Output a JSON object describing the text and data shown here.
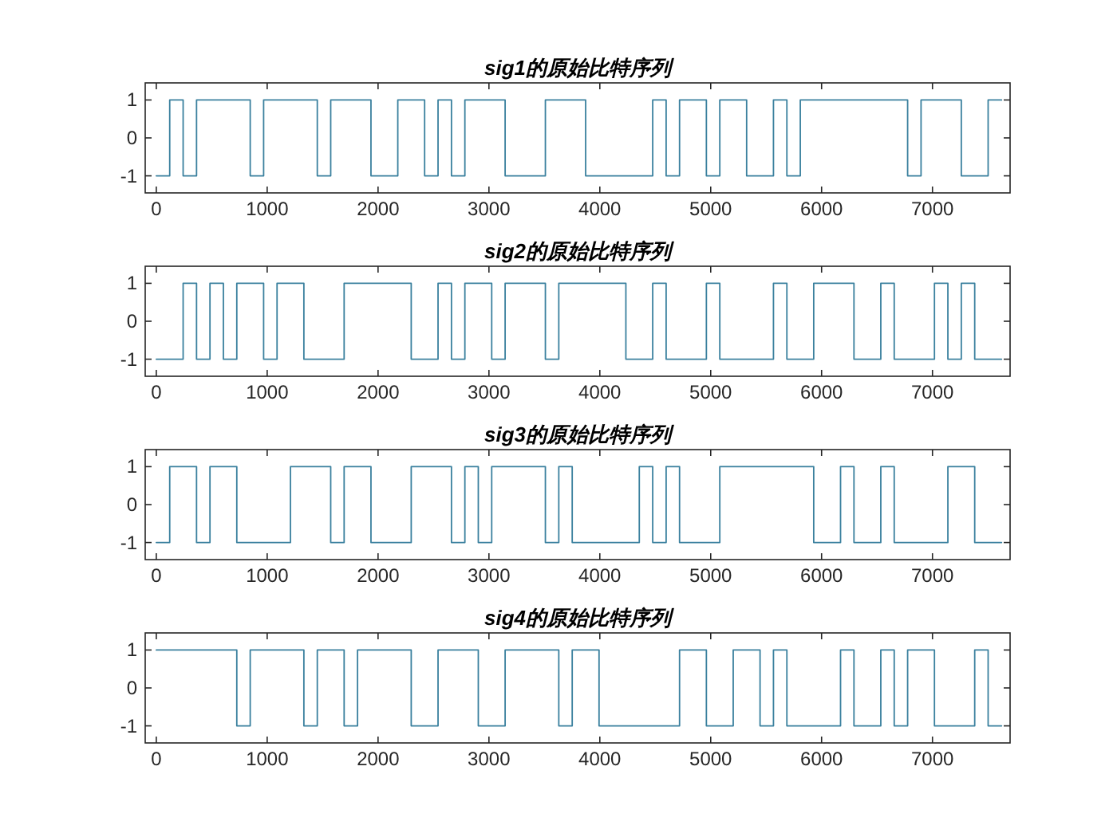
{
  "chart_data": [
    {
      "type": "step",
      "title": "sig1的原始比特序列",
      "color": "#3a809e",
      "xlim": [
        -100,
        7700
      ],
      "xticks": [
        0,
        1000,
        2000,
        3000,
        4000,
        5000,
        6000,
        7000
      ],
      "ylim": [
        -1.45,
        1.45
      ],
      "yticks": [
        -1,
        0,
        1
      ],
      "x": [
        0,
        121,
        242,
        363,
        484,
        605,
        726,
        847,
        968,
        1089,
        1210,
        1331,
        1452,
        1573,
        1694,
        1815,
        1936,
        2057,
        2178,
        2299,
        2420,
        2541,
        2662,
        2783,
        2904,
        3025,
        3146,
        3267,
        3388,
        3509,
        3630,
        3751,
        3872,
        3993,
        4114,
        4235,
        4356,
        4477,
        4598,
        4719,
        4840,
        4961,
        5082,
        5203,
        5324,
        5445,
        5566,
        5687,
        5808,
        5929,
        6050,
        6171,
        6292,
        6413,
        6534,
        6655,
        6776,
        6897,
        7018,
        7139,
        7260,
        7381,
        7502,
        7623
      ],
      "values": [
        -1,
        1,
        -1,
        1,
        1,
        1,
        1,
        -1,
        1,
        1,
        1,
        1,
        -1,
        1,
        1,
        1,
        -1,
        -1,
        1,
        1,
        -1,
        1,
        -1,
        1,
        1,
        1,
        -1,
        -1,
        -1,
        1,
        1,
        1,
        -1,
        -1,
        -1,
        -1,
        -1,
        1,
        -1,
        1,
        1,
        -1,
        1,
        1,
        -1,
        -1,
        1,
        -1,
        1,
        1,
        1,
        1,
        1,
        1,
        1,
        1,
        -1,
        1,
        1,
        1,
        -1,
        -1,
        1,
        1
      ]
    },
    {
      "type": "step",
      "title": "sig2的原始比特序列",
      "color": "#3a809e",
      "xlim": [
        -100,
        7700
      ],
      "xticks": [
        0,
        1000,
        2000,
        3000,
        4000,
        5000,
        6000,
        7000
      ],
      "ylim": [
        -1.45,
        1.45
      ],
      "yticks": [
        -1,
        0,
        1
      ],
      "x": [
        0,
        121,
        242,
        363,
        484,
        605,
        726,
        847,
        968,
        1089,
        1210,
        1331,
        1452,
        1573,
        1694,
        1815,
        1936,
        2057,
        2178,
        2299,
        2420,
        2541,
        2662,
        2783,
        2904,
        3025,
        3146,
        3267,
        3388,
        3509,
        3630,
        3751,
        3872,
        3993,
        4114,
        4235,
        4356,
        4477,
        4598,
        4719,
        4840,
        4961,
        5082,
        5203,
        5324,
        5445,
        5566,
        5687,
        5808,
        5929,
        6050,
        6171,
        6292,
        6413,
        6534,
        6655,
        6776,
        6897,
        7018,
        7139,
        7260,
        7381,
        7502,
        7623
      ],
      "values": [
        -1,
        -1,
        1,
        -1,
        1,
        -1,
        1,
        1,
        -1,
        1,
        1,
        -1,
        -1,
        -1,
        1,
        1,
        1,
        1,
        1,
        -1,
        -1,
        1,
        -1,
        1,
        1,
        -1,
        1,
        1,
        1,
        -1,
        1,
        1,
        1,
        1,
        1,
        -1,
        -1,
        1,
        -1,
        -1,
        -1,
        1,
        -1,
        -1,
        -1,
        -1,
        1,
        -1,
        -1,
        1,
        1,
        1,
        -1,
        -1,
        1,
        -1,
        -1,
        -1,
        1,
        -1,
        1,
        -1,
        -1,
        -1
      ]
    },
    {
      "type": "step",
      "title": "sig3的原始比特序列",
      "color": "#3a809e",
      "xlim": [
        -100,
        7700
      ],
      "xticks": [
        0,
        1000,
        2000,
        3000,
        4000,
        5000,
        6000,
        7000
      ],
      "ylim": [
        -1.45,
        1.45
      ],
      "yticks": [
        -1,
        0,
        1
      ],
      "x": [
        0,
        121,
        242,
        363,
        484,
        605,
        726,
        847,
        968,
        1089,
        1210,
        1331,
        1452,
        1573,
        1694,
        1815,
        1936,
        2057,
        2178,
        2299,
        2420,
        2541,
        2662,
        2783,
        2904,
        3025,
        3146,
        3267,
        3388,
        3509,
        3630,
        3751,
        3872,
        3993,
        4114,
        4235,
        4356,
        4477,
        4598,
        4719,
        4840,
        4961,
        5082,
        5203,
        5324,
        5445,
        5566,
        5687,
        5808,
        5929,
        6050,
        6171,
        6292,
        6413,
        6534,
        6655,
        6776,
        6897,
        7018,
        7139,
        7260,
        7381,
        7502,
        7623
      ],
      "values": [
        -1,
        1,
        1,
        -1,
        1,
        1,
        -1,
        -1,
        -1,
        -1,
        1,
        1,
        1,
        -1,
        1,
        1,
        -1,
        -1,
        -1,
        1,
        1,
        1,
        -1,
        1,
        -1,
        1,
        1,
        1,
        1,
        -1,
        1,
        -1,
        -1,
        -1,
        -1,
        -1,
        1,
        -1,
        1,
        -1,
        -1,
        -1,
        1,
        1,
        1,
        1,
        1,
        1,
        1,
        -1,
        -1,
        1,
        -1,
        -1,
        1,
        -1,
        -1,
        -1,
        -1,
        1,
        1,
        -1,
        -1,
        -1
      ]
    },
    {
      "type": "step",
      "title": "sig4的原始比特序列",
      "color": "#3a809e",
      "xlim": [
        -100,
        7700
      ],
      "xticks": [
        0,
        1000,
        2000,
        3000,
        4000,
        5000,
        6000,
        7000
      ],
      "ylim": [
        -1.45,
        1.45
      ],
      "yticks": [
        -1,
        0,
        1
      ],
      "x": [
        0,
        121,
        242,
        363,
        484,
        605,
        726,
        847,
        968,
        1089,
        1210,
        1331,
        1452,
        1573,
        1694,
        1815,
        1936,
        2057,
        2178,
        2299,
        2420,
        2541,
        2662,
        2783,
        2904,
        3025,
        3146,
        3267,
        3388,
        3509,
        3630,
        3751,
        3872,
        3993,
        4114,
        4235,
        4356,
        4477,
        4598,
        4719,
        4840,
        4961,
        5082,
        5203,
        5324,
        5445,
        5566,
        5687,
        5808,
        5929,
        6050,
        6171,
        6292,
        6413,
        6534,
        6655,
        6776,
        6897,
        7018,
        7139,
        7260,
        7381,
        7502,
        7623
      ],
      "values": [
        1,
        1,
        1,
        1,
        1,
        1,
        -1,
        1,
        1,
        1,
        1,
        -1,
        1,
        1,
        -1,
        1,
        1,
        1,
        1,
        -1,
        -1,
        1,
        1,
        1,
        -1,
        -1,
        1,
        1,
        1,
        1,
        -1,
        1,
        1,
        -1,
        -1,
        -1,
        -1,
        -1,
        -1,
        1,
        1,
        -1,
        -1,
        1,
        1,
        -1,
        1,
        -1,
        -1,
        -1,
        -1,
        1,
        -1,
        -1,
        1,
        -1,
        1,
        1,
        -1,
        -1,
        -1,
        1,
        -1,
        -1
      ]
    }
  ]
}
